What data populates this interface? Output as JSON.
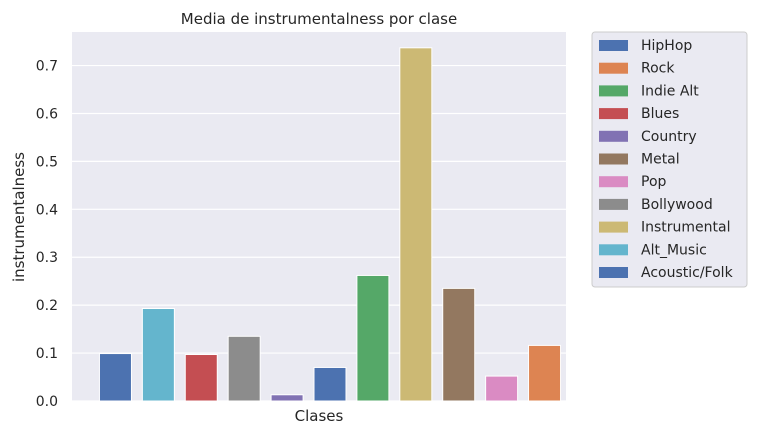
{
  "chart_data": {
    "type": "bar",
    "title": "Media de instrumentalness por clase",
    "xlabel": "Clases",
    "ylabel": "instrumentalness",
    "ylim": [
      0,
      0.77
    ],
    "yticks": [
      "0.0",
      "0.1",
      "0.2",
      "0.3",
      "0.4",
      "0.5",
      "0.6",
      "0.7"
    ],
    "grid": true,
    "legend_placement": "outside top-right",
    "series": [
      {
        "name": "Acoustic/Folk",
        "value": 0.099,
        "color": "#4c72b0"
      },
      {
        "name": "Alt_Music",
        "value": 0.193,
        "color": "#64b5cd"
      },
      {
        "name": "Blues",
        "value": 0.097,
        "color": "#c44e52"
      },
      {
        "name": "Bollywood",
        "value": 0.135,
        "color": "#8c8c8c"
      },
      {
        "name": "Country",
        "value": 0.013,
        "color": "#8172b3"
      },
      {
        "name": "HipHop",
        "value": 0.07,
        "color": "#4c72b0"
      },
      {
        "name": "Indie Alt",
        "value": 0.262,
        "color": "#55a868"
      },
      {
        "name": "Instrumental",
        "value": 0.737,
        "color": "#ccb974"
      },
      {
        "name": "Metal",
        "value": 0.235,
        "color": "#937860"
      },
      {
        "name": "Pop",
        "value": 0.052,
        "color": "#da8bc3"
      },
      {
        "name": "Rock",
        "value": 0.116,
        "color": "#dd8452"
      }
    ],
    "legend": [
      {
        "label": "HipHop",
        "color": "#4c72b0"
      },
      {
        "label": "Rock",
        "color": "#dd8452"
      },
      {
        "label": "Indie Alt",
        "color": "#55a868"
      },
      {
        "label": "Blues",
        "color": "#c44e52"
      },
      {
        "label": "Country",
        "color": "#8172b3"
      },
      {
        "label": "Metal",
        "color": "#937860"
      },
      {
        "label": "Pop",
        "color": "#da8bc3"
      },
      {
        "label": "Bollywood",
        "color": "#8c8c8c"
      },
      {
        "label": "Instrumental",
        "color": "#ccb974"
      },
      {
        "label": "Alt_Music",
        "color": "#64b5cd"
      },
      {
        "label": "Acoustic/Folk",
        "color": "#4c72b0"
      }
    ],
    "colors": {
      "plot_background": "#eaeaf2",
      "grid": "#ffffff",
      "text": "#262626"
    }
  }
}
